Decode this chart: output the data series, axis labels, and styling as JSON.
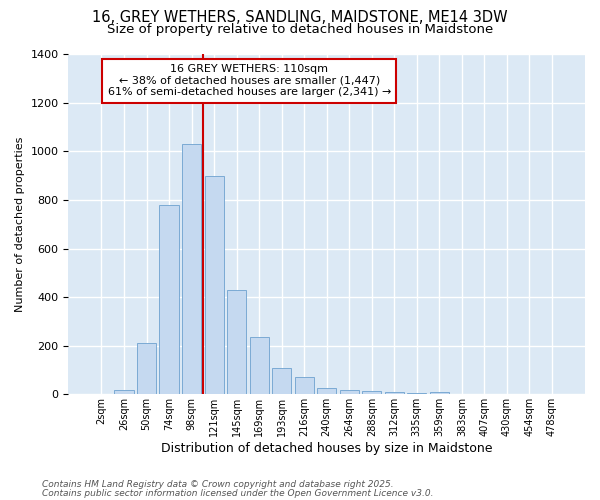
{
  "title_line1": "16, GREY WETHERS, SANDLING, MAIDSTONE, ME14 3DW",
  "title_line2": "Size of property relative to detached houses in Maidstone",
  "xlabel": "Distribution of detached houses by size in Maidstone",
  "ylabel": "Number of detached properties",
  "bar_labels": [
    "2sqm",
    "26sqm",
    "50sqm",
    "74sqm",
    "98sqm",
    "121sqm",
    "145sqm",
    "169sqm",
    "193sqm",
    "216sqm",
    "240sqm",
    "264sqm",
    "288sqm",
    "312sqm",
    "335sqm",
    "359sqm",
    "383sqm",
    "407sqm",
    "430sqm",
    "454sqm",
    "478sqm"
  ],
  "bar_values": [
    0,
    20,
    210,
    780,
    1030,
    900,
    430,
    235,
    110,
    70,
    25,
    20,
    15,
    8,
    5,
    8,
    0,
    0,
    0,
    0,
    0
  ],
  "bar_color": "#c5d9f0",
  "bar_edge_color": "#7baad4",
  "vline_x": 4.5,
  "vline_color": "#cc0000",
  "annotation_text": "16 GREY WETHERS: 110sqm\n← 38% of detached houses are smaller (1,447)\n61% of semi-detached houses are larger (2,341) →",
  "annotation_box_color": "#ffffff",
  "annotation_box_edge": "#cc0000",
  "ylim": [
    0,
    1400
  ],
  "footnote1": "Contains HM Land Registry data © Crown copyright and database right 2025.",
  "footnote2": "Contains public sector information licensed under the Open Government Licence v3.0.",
  "bg_color": "#ffffff",
  "plot_bg_color": "#dce9f5",
  "grid_color": "#ffffff",
  "title_fontsize": 10.5,
  "subtitle_fontsize": 9.5
}
